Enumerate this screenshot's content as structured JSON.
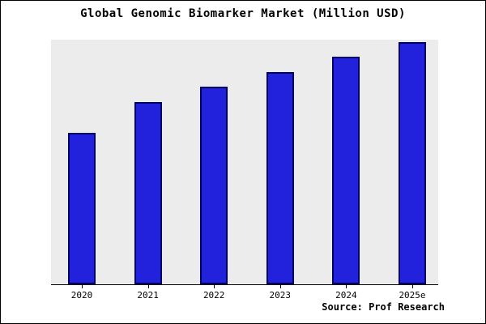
{
  "title": "Global Genomic Biomarker Market (Million USD)",
  "source": "Source: Prof Research",
  "colors": {
    "bar_fill": "#2222dd",
    "bar_edge": "#000066",
    "plot_background": "#ececec",
    "axis": "#000000",
    "text": "#000000"
  },
  "chart_data": {
    "type": "bar",
    "title": "Global Genomic Biomarker Market (Million USD)",
    "categories": [
      "2020",
      "2021",
      "2022",
      "2023",
      "2024",
      "2025e"
    ],
    "values": [
      62.5,
      75.3,
      81.6,
      87.6,
      94.0,
      100.0
    ],
    "xlabel": "",
    "ylabel": "",
    "ylim": [
      0,
      100
    ],
    "y_ticks": [],
    "grid": false,
    "legend": false,
    "note_source": "Source: Prof Research"
  }
}
